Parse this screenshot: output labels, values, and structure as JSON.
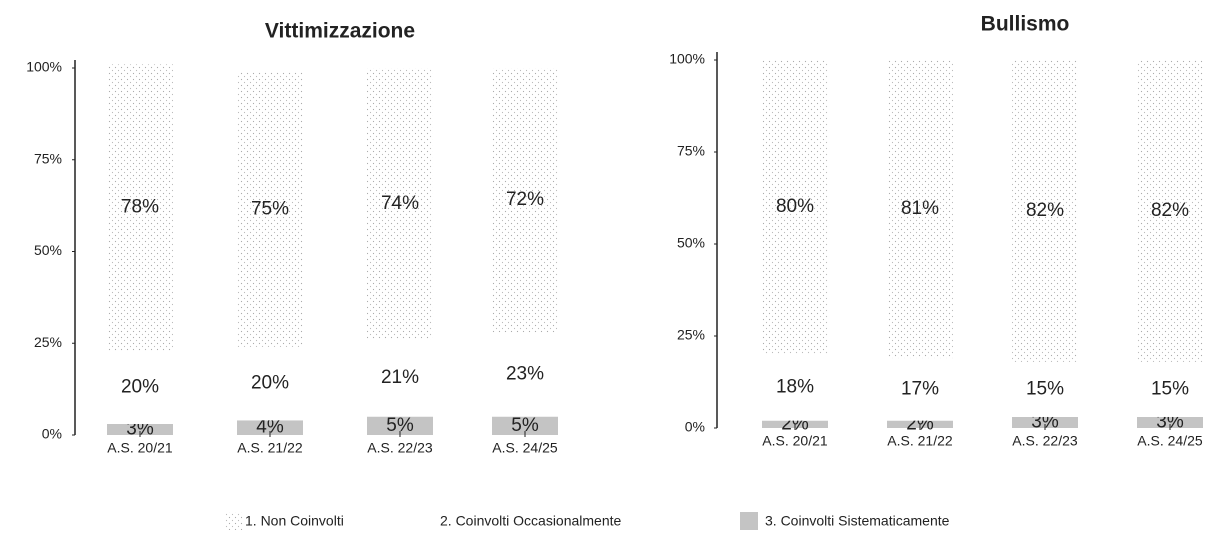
{
  "chart_data": [
    {
      "type": "stacked-bar",
      "title": "Vittimizzazione",
      "categories": [
        "A.S. 20/21",
        "A.S. 21/22",
        "A.S. 22/23",
        "A.S. 24/25"
      ],
      "ylim": [
        0,
        100
      ],
      "yticks": [
        {
          "value": 0,
          "label": "0%"
        },
        {
          "value": 25,
          "label": "25%"
        },
        {
          "value": 50,
          "label": "50%"
        },
        {
          "value": 75,
          "label": "75%"
        },
        {
          "value": 100,
          "label": "100%"
        }
      ],
      "series": [
        {
          "color": "#c4c4c4",
          "values": [
            3,
            4,
            5,
            5
          ],
          "value_labels": [
            "3%",
            "4%",
            "5%",
            "5%"
          ]
        },
        {
          "color": "#ffffff",
          "values": [
            20,
            20,
            21,
            23
          ],
          "value_labels": [
            "20%",
            "20%",
            "21%",
            "23%"
          ]
        },
        {
          "color": "#f1f1f1",
          "values": [
            78,
            75,
            74,
            72
          ],
          "value_labels": [
            "78%",
            "75%",
            "74%",
            "72%"
          ]
        }
      ]
    },
    {
      "type": "stacked-bar",
      "title": "Bullismo",
      "categories": [
        "A.S. 20/21",
        "A.S. 21/22",
        "A.S. 22/23",
        "A.S. 24/25"
      ],
      "ylim": [
        0,
        100
      ],
      "yticks": [
        {
          "value": 0,
          "label": "0%"
        },
        {
          "value": 25,
          "label": "25%"
        },
        {
          "value": 50,
          "label": "50%"
        },
        {
          "value": 75,
          "label": "75%"
        },
        {
          "value": 100,
          "label": "100%"
        }
      ],
      "series": [
        {
          "color": "#c4c4c4",
          "values": [
            2,
            2,
            3,
            3
          ],
          "value_labels": [
            "2%",
            "2%",
            "3%",
            "3%"
          ]
        },
        {
          "color": "#ffffff",
          "values": [
            18,
            17,
            15,
            15
          ],
          "value_labels": [
            "18%",
            "17%",
            "15%",
            "15%"
          ]
        },
        {
          "color": "#f1f1f1",
          "values": [
            80,
            81,
            82,
            82
          ],
          "value_labels": [
            "80%",
            "81%",
            "82%",
            "82%"
          ]
        }
      ]
    }
  ],
  "legend": {
    "items": [
      {
        "name": "1. Non Coinvolti",
        "color": "#f1f1f1"
      },
      {
        "name": "2. Coinvolti Occasionalmente",
        "color": "#ffffff"
      },
      {
        "name": "3. Coinvolti Sistematicamente",
        "color": "#c4c4c4"
      }
    ]
  }
}
